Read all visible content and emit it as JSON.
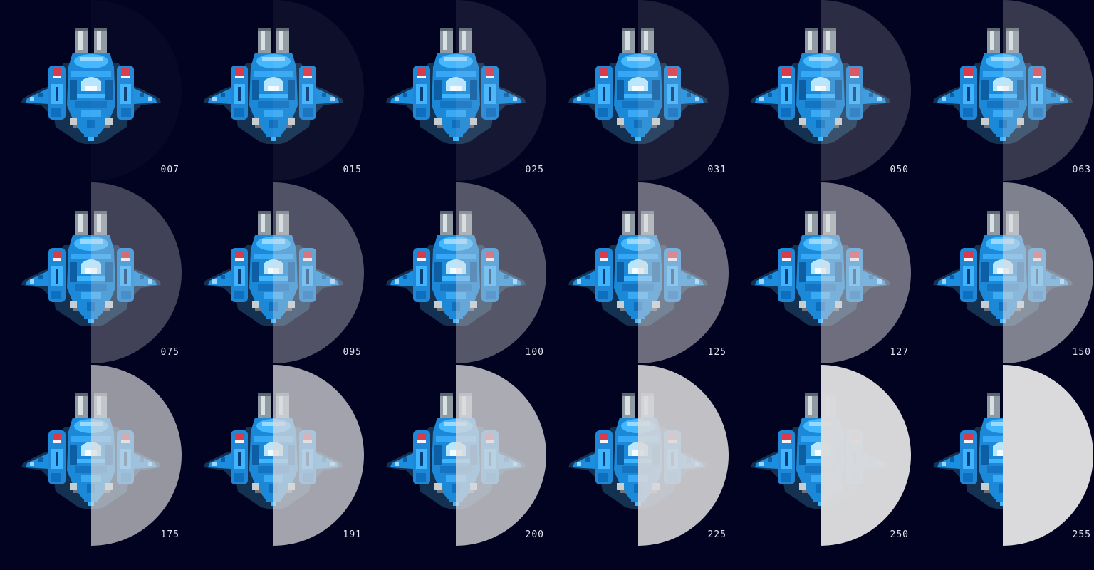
{
  "sheet": {
    "sprite_icon": "spaceship-sprite-icon",
    "overlay_color": "#dadadc",
    "background_color": "#020320",
    "frames": [
      {
        "label": "007",
        "alpha": 7
      },
      {
        "label": "015",
        "alpha": 15
      },
      {
        "label": "025",
        "alpha": 25
      },
      {
        "label": "031",
        "alpha": 31
      },
      {
        "label": "050",
        "alpha": 50
      },
      {
        "label": "063",
        "alpha": 63
      },
      {
        "label": "075",
        "alpha": 75
      },
      {
        "label": "095",
        "alpha": 95
      },
      {
        "label": "100",
        "alpha": 100
      },
      {
        "label": "125",
        "alpha": 125
      },
      {
        "label": "127",
        "alpha": 127
      },
      {
        "label": "150",
        "alpha": 150
      },
      {
        "label": "175",
        "alpha": 175
      },
      {
        "label": "191",
        "alpha": 191
      },
      {
        "label": "200",
        "alpha": 200
      },
      {
        "label": "225",
        "alpha": 225
      },
      {
        "label": "250",
        "alpha": 250
      },
      {
        "label": "255",
        "alpha": 255
      }
    ]
  }
}
